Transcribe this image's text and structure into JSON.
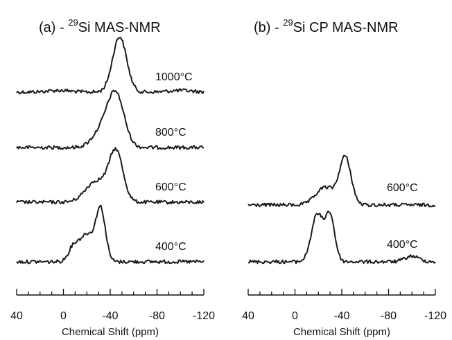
{
  "chart_data": [
    {
      "type": "line",
      "panel": "(a)",
      "title_prefix": "(a)  - ",
      "title_sup": "29",
      "title_main": "Si MAS-NMR",
      "xlabel": "Chemical Shift (ppm)",
      "xlim": [
        40,
        -120
      ],
      "x_ticks": [
        40,
        0,
        -40,
        -80,
        -120
      ],
      "x_tick_labels": [
        "40",
        "0",
        "-40",
        "-80",
        "-120"
      ],
      "y_axis": "none",
      "series": [
        {
          "name": "1000°C",
          "peaks": [
            {
              "center": -48,
              "width": 6,
              "height": 1.0
            },
            {
              "center": 4,
              "width": 10,
              "height": 0.03
            },
            {
              "center": -100,
              "width": 10,
              "height": 0.03
            }
          ]
        },
        {
          "name": "800°C",
          "peaks": [
            {
              "center": -45,
              "width": 7,
              "height": 0.92
            },
            {
              "center": -33,
              "width": 8,
              "height": 0.3
            }
          ]
        },
        {
          "name": "600°C",
          "peaks": [
            {
              "center": -45,
              "width": 6,
              "height": 0.9
            },
            {
              "center": -28,
              "width": 9,
              "height": 0.38
            }
          ]
        },
        {
          "name": "400°C",
          "peaks": [
            {
              "center": -32,
              "width": 4,
              "height": 0.88
            },
            {
              "center": -20,
              "width": 7,
              "height": 0.5
            },
            {
              "center": -8,
              "width": 4,
              "height": 0.2
            }
          ]
        }
      ]
    },
    {
      "type": "line",
      "panel": "(b)",
      "title_prefix": "(b)  - ",
      "title_sup": "29",
      "title_main": "Si CP MAS-NMR",
      "xlabel": "Chemical Shift (ppm)",
      "xlim": [
        40,
        -120
      ],
      "x_ticks": [
        40,
        0,
        -40,
        -80,
        -120
      ],
      "x_tick_labels": [
        "40",
        "0",
        "-40",
        "-80",
        "-120"
      ],
      "y_axis": "none",
      "series": [
        {
          "name": "600°C",
          "peaks": [
            {
              "center": -43,
              "width": 5,
              "height": 0.85
            },
            {
              "center": -26,
              "width": 8,
              "height": 0.32
            }
          ]
        },
        {
          "name": "400°C",
          "peaks": [
            {
              "center": -19,
              "width": 5,
              "height": 0.85
            },
            {
              "center": -30,
              "width": 4,
              "height": 0.82
            },
            {
              "center": -100,
              "width": 6,
              "height": 0.1
            }
          ]
        }
      ]
    }
  ]
}
